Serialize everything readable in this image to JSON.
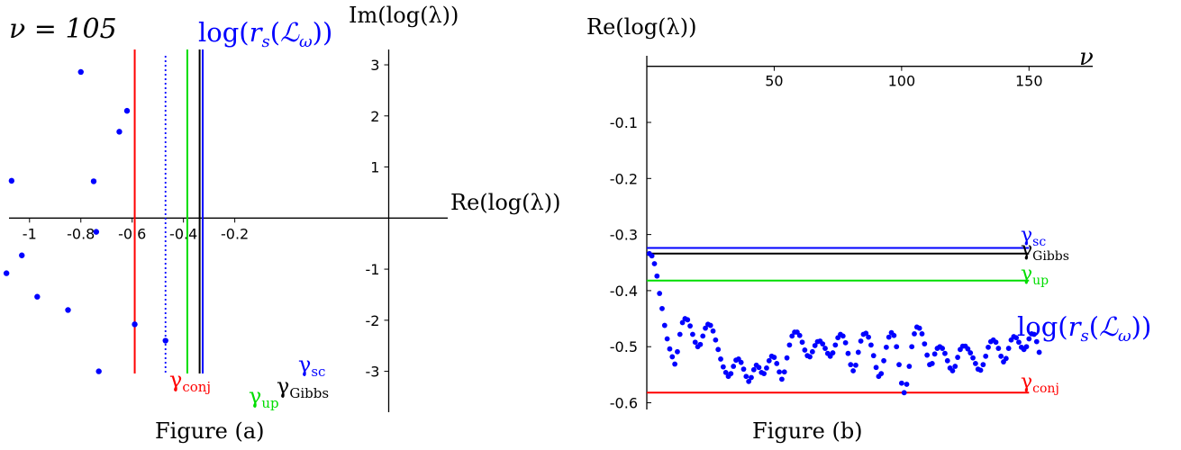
{
  "colors": {
    "points": "#0000ff",
    "conj": "#ff0000",
    "up": "#00dd00",
    "gibbs": "#000000",
    "sc": "#0000ff",
    "log_rs": "#0000ff"
  },
  "chart_data": [
    {
      "type": "scatter",
      "caption": "Figure (a)",
      "title": "ν = 105",
      "xlabel": "Re(log(λ))",
      "ylabel": "Im(log(λ))",
      "xlim": [
        -1.08,
        0.63
      ],
      "ylim": [
        -3.8,
        3.3
      ],
      "x_ticks": [
        -1,
        -0.8,
        -0.6,
        -0.4,
        -0.2
      ],
      "x_tick_labels": [
        "-1",
        "-0.8",
        "-0.6",
        "-0.4",
        "-0.2"
      ],
      "y_ticks": [
        -3,
        -2,
        -1,
        1,
        2,
        3
      ],
      "y_tick_labels": [
        "-3",
        "-2",
        "-1",
        "1",
        "2",
        "3"
      ],
      "series": [
        {
          "points": [
            [
              -0.8,
              2.86
            ],
            [
              -0.62,
              2.1
            ],
            [
              -0.65,
              1.69
            ],
            [
              -1.07,
              0.73
            ],
            [
              -0.75,
              0.72
            ],
            [
              -0.74,
              -0.27
            ],
            [
              -1.03,
              -0.73
            ],
            [
              -1.09,
              -1.08
            ],
            [
              -0.97,
              -1.54
            ],
            [
              -0.85,
              -1.8
            ],
            [
              -0.59,
              -2.08
            ],
            [
              -0.47,
              -2.4
            ],
            [
              -0.73,
              -3.0
            ]
          ]
        }
      ],
      "vlines": [
        {
          "key": "conj",
          "x": -0.59,
          "label": "γ",
          "sub": "conj",
          "style": "solid",
          "color": "#ff0000"
        },
        {
          "key": "logrs",
          "x": -0.47,
          "label": "log(r_s(ℒ_ω))",
          "style": "dotted",
          "color": "#0000ff"
        },
        {
          "key": "up",
          "x": -0.385,
          "label": "γ",
          "sub": "up",
          "style": "solid",
          "color": "#00dd00"
        },
        {
          "key": "gibbs",
          "x": -0.337,
          "label": "γ",
          "sub": "Gibbs",
          "style": "solid",
          "color": "#000000"
        },
        {
          "key": "sc",
          "x": -0.325,
          "label": "γ",
          "sub": "sc",
          "style": "solid",
          "color": "#0000ff"
        }
      ]
    },
    {
      "type": "scatter",
      "caption": "Figure (b)",
      "xlabel": "ν",
      "ylabel": "Re(log(λ))",
      "xlim": [
        0,
        175
      ],
      "ylim": [
        -0.612,
        0.03
      ],
      "x_ticks": [
        50,
        100,
        150
      ],
      "x_tick_labels": [
        "50",
        "100",
        "150"
      ],
      "y_ticks": [
        -0.1,
        -0.2,
        -0.3,
        -0.4,
        -0.5,
        -0.6
      ],
      "y_tick_labels": [
        "-0.1",
        "-0.2",
        "-0.3",
        "-0.4",
        "-0.5",
        "-0.6"
      ],
      "series": [
        {
          "name": "log(r_s(ℒ_ω))",
          "x_start": 1,
          "y": [
            -0.334,
            -0.338,
            -0.352,
            -0.374,
            -0.405,
            -0.432,
            -0.462,
            -0.486,
            -0.504,
            -0.518,
            -0.531,
            -0.509,
            -0.478,
            -0.457,
            -0.45,
            -0.452,
            -0.463,
            -0.478,
            -0.492,
            -0.5,
            -0.496,
            -0.481,
            -0.467,
            -0.46,
            -0.462,
            -0.472,
            -0.488,
            -0.505,
            -0.522,
            -0.536,
            -0.546,
            -0.553,
            -0.548,
            -0.535,
            -0.524,
            -0.522,
            -0.528,
            -0.54,
            -0.553,
            -0.562,
            -0.555,
            -0.541,
            -0.533,
            -0.537,
            -0.546,
            -0.548,
            -0.538,
            -0.525,
            -0.517,
            -0.519,
            -0.53,
            -0.545,
            -0.558,
            -0.545,
            -0.52,
            -0.497,
            -0.481,
            -0.474,
            -0.474,
            -0.48,
            -0.492,
            -0.506,
            -0.516,
            -0.518,
            -0.509,
            -0.498,
            -0.491,
            -0.49,
            -0.495,
            -0.503,
            -0.512,
            -0.517,
            -0.511,
            -0.497,
            -0.484,
            -0.478,
            -0.481,
            -0.493,
            -0.512,
            -0.532,
            -0.543,
            -0.533,
            -0.51,
            -0.49,
            -0.478,
            -0.476,
            -0.483,
            -0.497,
            -0.516,
            -0.537,
            -0.553,
            -0.548,
            -0.525,
            -0.501,
            -0.483,
            -0.475,
            -0.48,
            -0.5,
            -0.532,
            -0.565,
            -0.582,
            -0.567,
            -0.535,
            -0.5,
            -0.477,
            -0.465,
            -0.467,
            -0.477,
            -0.495,
            -0.515,
            -0.532,
            -0.53,
            -0.513,
            -0.503,
            -0.5,
            -0.503,
            -0.512,
            -0.525,
            -0.538,
            -0.543,
            -0.535,
            -0.519,
            -0.505,
            -0.499,
            -0.499,
            -0.504,
            -0.511,
            -0.52,
            -0.53,
            -0.54,
            -0.542,
            -0.532,
            -0.517,
            -0.501,
            -0.491,
            -0.488,
            -0.492,
            -0.503,
            -0.517,
            -0.527,
            -0.521,
            -0.503,
            -0.488,
            -0.482,
            -0.484,
            -0.492,
            -0.501,
            -0.505,
            -0.5,
            -0.486,
            -0.477,
            -0.478,
            -0.491,
            -0.51
          ]
        }
      ],
      "hlines": [
        {
          "key": "sc",
          "y": -0.324,
          "label": "γ",
          "sub": "sc",
          "color": "#0000ff"
        },
        {
          "key": "gibbs",
          "y": -0.334,
          "label": "γ",
          "sub": "Gibbs",
          "color": "#000000"
        },
        {
          "key": "up",
          "y": -0.382,
          "label": "γ",
          "sub": "up",
          "color": "#00dd00"
        },
        {
          "key": "conj",
          "y": -0.582,
          "label": "γ",
          "sub": "conj",
          "color": "#ff0000"
        }
      ],
      "series_label": "log(r_s(ℒ_ω))"
    }
  ]
}
